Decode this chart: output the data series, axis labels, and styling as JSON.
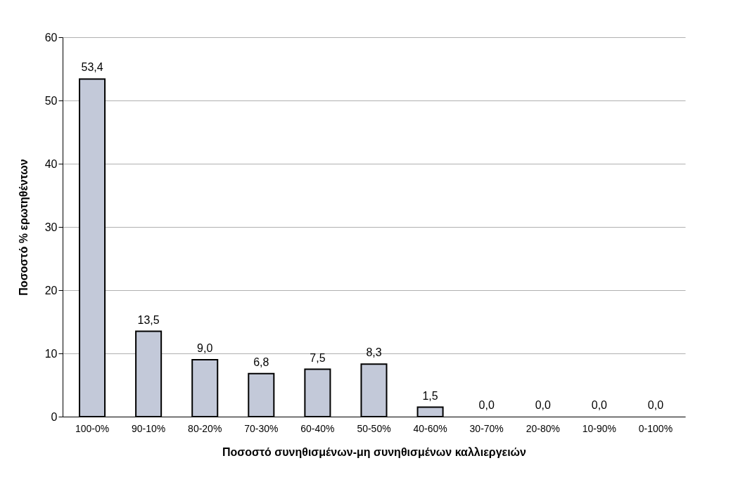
{
  "chart_data": {
    "type": "bar",
    "xlabel": "Ποσοστό συνηθισμένων-μη συνηθισμένων καλλιεργειών",
    "ylabel": "Ποσοστό % ερωτηθέντων",
    "categories": [
      "100-0%",
      "90-10%",
      "80-20%",
      "70-30%",
      "60-40%",
      "50-50%",
      "40-60%",
      "30-70%",
      "20-80%",
      "10-90%",
      "0-100%"
    ],
    "values": [
      53.4,
      13.5,
      9.0,
      6.8,
      7.5,
      8.3,
      1.5,
      0.0,
      0.0,
      0.0,
      0.0
    ],
    "value_labels": [
      "53,4",
      "13,5",
      "9,0",
      "6,8",
      "7,5",
      "8,3",
      "1,5",
      "0,0",
      "0,0",
      "0,0",
      "0,0"
    ],
    "color": "#c3c9d9",
    "ylim": [
      0,
      60
    ],
    "yticks": [
      0,
      10,
      20,
      30,
      40,
      50,
      60
    ],
    "grid": "y"
  }
}
